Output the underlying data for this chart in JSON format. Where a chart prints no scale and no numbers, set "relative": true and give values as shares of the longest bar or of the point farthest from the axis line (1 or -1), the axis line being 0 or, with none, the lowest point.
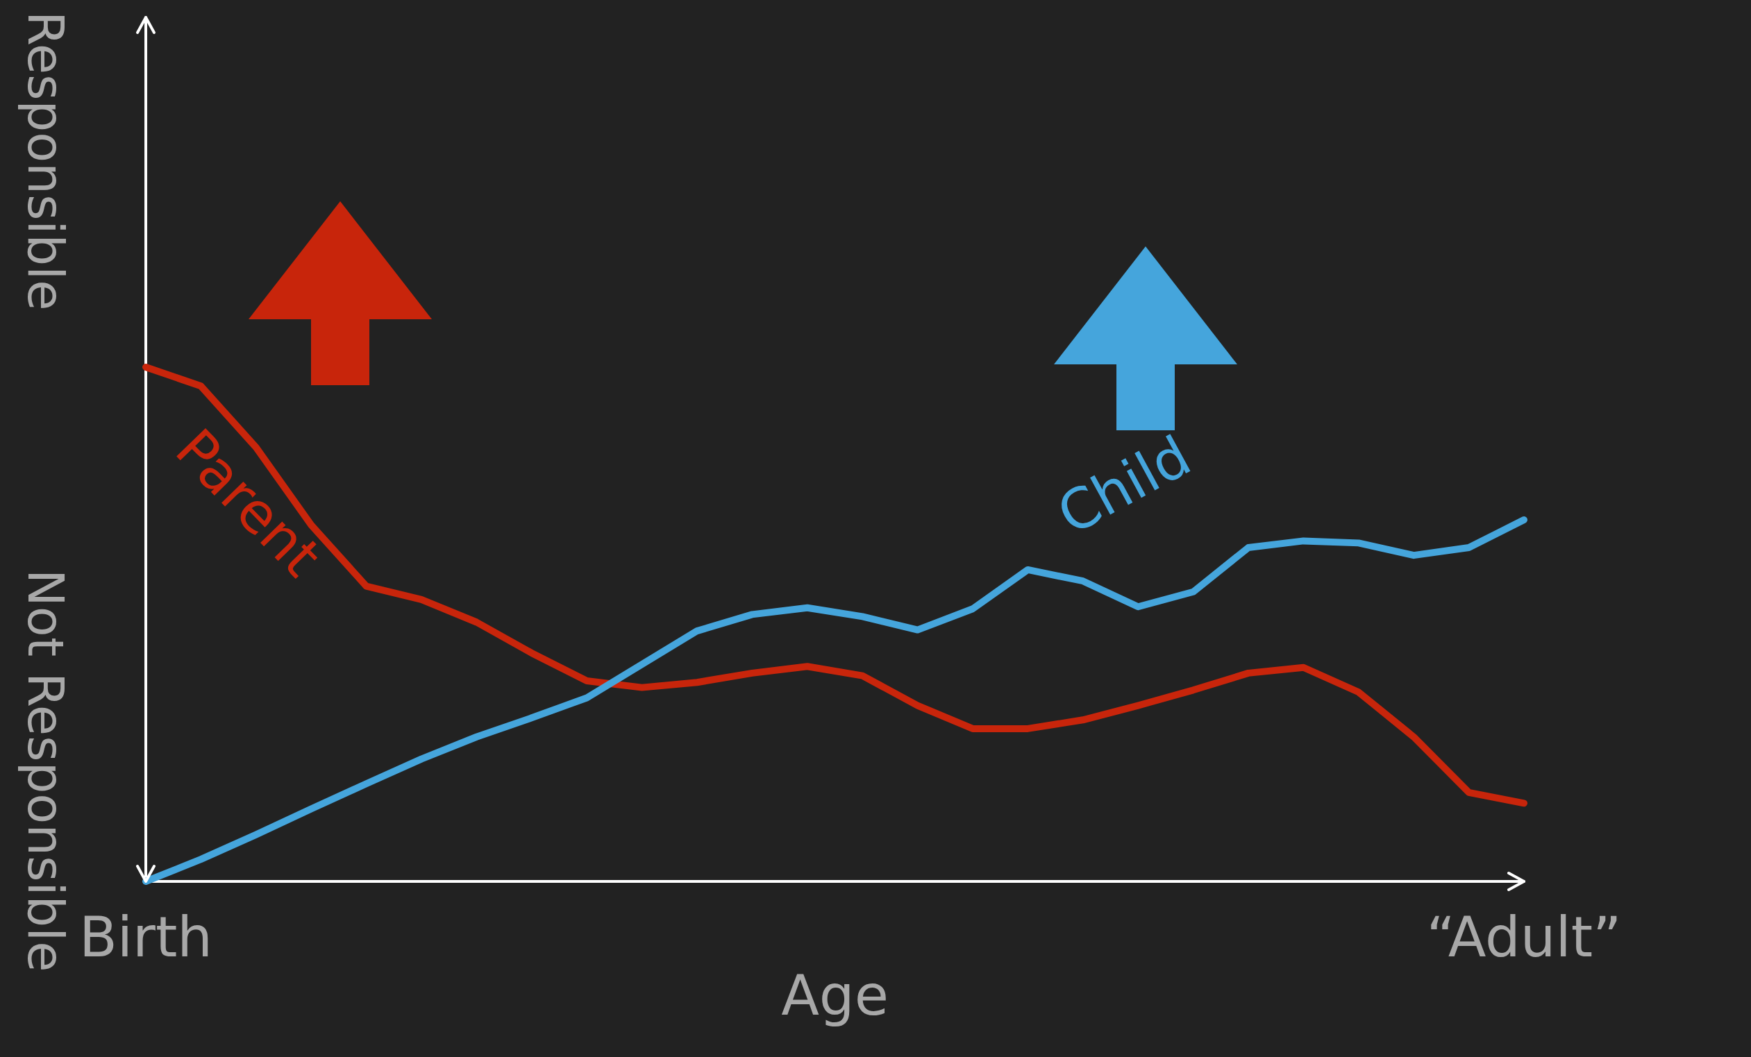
{
  "chart_data": {
    "type": "line",
    "relative": true,
    "xlabel": "Age",
    "categories": [
      "Birth",
      null,
      null,
      null,
      null,
      null,
      null,
      null,
      null,
      null,
      null,
      null,
      null,
      null,
      null,
      null,
      null,
      null,
      null,
      null,
      null,
      null,
      null,
      null,
      null,
      "“Adult”"
    ],
    "series": [
      {
        "name": "Parent",
        "color": "#c8250b",
        "values": [
          1,
          0.963,
          0.844,
          0.693,
          0.574,
          0.548,
          0.504,
          0.444,
          0.39,
          0.377,
          0.387,
          0.405,
          0.418,
          0.4,
          0.342,
          0.297,
          0.297,
          0.314,
          0.342,
          0.372,
          0.405,
          0.416,
          0.368,
          0.281,
          0.173,
          0.152
        ]
      },
      {
        "name": "Child",
        "color": "#45a5dc",
        "values": [
          0,
          0.043,
          0.091,
          0.141,
          0.19,
          0.238,
          0.281,
          0.318,
          0.357,
          0.422,
          0.487,
          0.519,
          0.532,
          0.515,
          0.489,
          0.53,
          0.606,
          0.584,
          0.534,
          0.563,
          0.649,
          0.662,
          0.658,
          0.634,
          0.649,
          0.703
        ]
      }
    ],
    "annotations": [
      "Responsible",
      "Not Responsible"
    ],
    "marker": "none",
    "line_style": "solid"
  }
}
